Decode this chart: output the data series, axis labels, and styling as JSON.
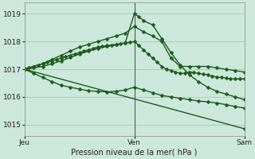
{
  "bg_color": "#cce8dc",
  "grid_color": "#99ccb8",
  "line_color": "#1a5c1a",
  "marker": "D",
  "markersize": 2.5,
  "linewidth": 1.0,
  "title": "Pression niveau de la mer( hPa )",
  "ylim": [
    1014.6,
    1019.4
  ],
  "yticks": [
    1015,
    1016,
    1017,
    1018,
    1019
  ],
  "xtick_labels": [
    "Jeu",
    "Ven",
    "Sam"
  ],
  "xtick_pos": [
    0,
    48,
    96
  ],
  "vline_x": 48,
  "series": [
    {
      "x": [
        0,
        2,
        4,
        6,
        8,
        10,
        12,
        14,
        16,
        18,
        20,
        22,
        24,
        26,
        28,
        30,
        32,
        34,
        36,
        38,
        40,
        42,
        44,
        46,
        48,
        50,
        52,
        54,
        56,
        58,
        60,
        62,
        64,
        66,
        68,
        70,
        72,
        74,
        76,
        78,
        80,
        82,
        84,
        86,
        88,
        90,
        92,
        94,
        96
      ],
      "y": [
        1017.0,
        1017.05,
        1017.1,
        1017.15,
        1017.2,
        1017.25,
        1017.3,
        1017.35,
        1017.4,
        1017.45,
        1017.5,
        1017.55,
        1017.6,
        1017.65,
        1017.7,
        1017.75,
        1017.8,
        1017.82,
        1017.85,
        1017.87,
        1017.9,
        1017.92,
        1017.95,
        1017.97,
        1018.0,
        1017.85,
        1017.7,
        1017.55,
        1017.4,
        1017.25,
        1017.1,
        1017.0,
        1016.95,
        1016.9,
        1016.85,
        1016.85,
        1016.9,
        1016.88,
        1016.85,
        1016.82,
        1016.8,
        1016.75,
        1016.72,
        1016.7,
        1016.68,
        1016.65,
        1016.65,
        1016.65,
        1016.65
      ]
    },
    {
      "x": [
        0,
        4,
        8,
        12,
        16,
        20,
        24,
        28,
        32,
        36,
        40,
        44,
        48,
        52,
        56,
        60,
        64,
        68,
        72,
        76,
        80,
        84,
        88,
        92,
        96
      ],
      "y": [
        1017.0,
        1017.1,
        1017.2,
        1017.35,
        1017.5,
        1017.65,
        1017.8,
        1017.9,
        1018.0,
        1018.1,
        1018.2,
        1018.3,
        1018.55,
        1018.35,
        1018.2,
        1018.0,
        1017.4,
        1017.1,
        1017.1,
        1017.1,
        1017.1,
        1017.05,
        1017.0,
        1016.95,
        1016.9
      ]
    },
    {
      "x": [
        0,
        4,
        8,
        12,
        16,
        20,
        24,
        28,
        32,
        36,
        40,
        44,
        48,
        50,
        52,
        56,
        60,
        64,
        68,
        72,
        76,
        80,
        84,
        88,
        92,
        96
      ],
      "y": [
        1017.0,
        1017.05,
        1017.1,
        1017.2,
        1017.3,
        1017.42,
        1017.55,
        1017.65,
        1017.75,
        1017.82,
        1017.88,
        1017.95,
        1019.0,
        1018.9,
        1018.75,
        1018.6,
        1018.1,
        1017.6,
        1017.15,
        1016.8,
        1016.55,
        1016.35,
        1016.2,
        1016.1,
        1016.0,
        1015.9
      ]
    },
    {
      "x": [
        0,
        4,
        8,
        12,
        16,
        20,
        24,
        28,
        32,
        36,
        40,
        44,
        48,
        52,
        56,
        60,
        64,
        68,
        72,
        76,
        80,
        84,
        88,
        92,
        96
      ],
      "y": [
        1017.0,
        1016.85,
        1016.7,
        1016.55,
        1016.42,
        1016.35,
        1016.28,
        1016.22,
        1016.2,
        1016.18,
        1016.2,
        1016.25,
        1016.35,
        1016.25,
        1016.15,
        1016.05,
        1016.0,
        1015.95,
        1015.9,
        1015.85,
        1015.82,
        1015.78,
        1015.72,
        1015.65,
        1015.6
      ]
    },
    {
      "x": [
        0,
        96
      ],
      "y": [
        1017.0,
        1014.85
      ]
    }
  ]
}
